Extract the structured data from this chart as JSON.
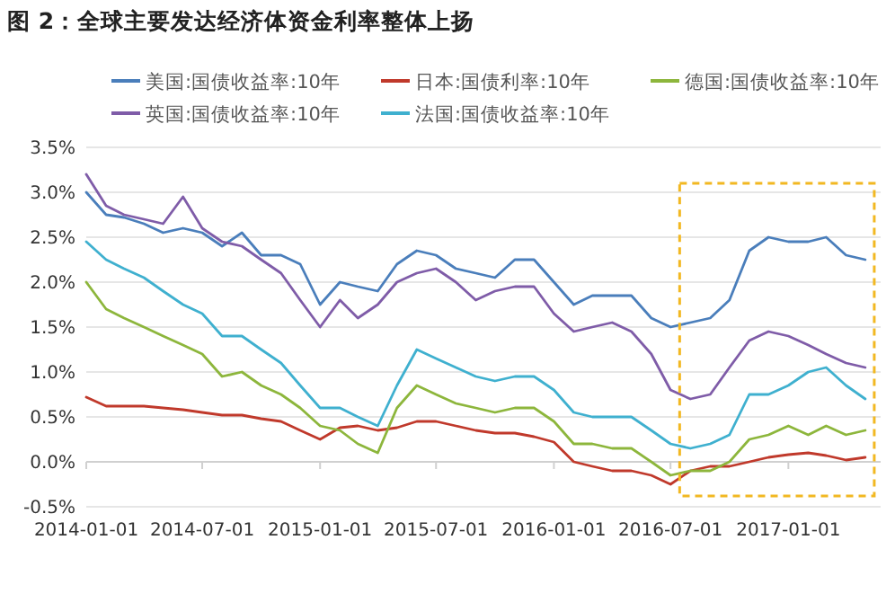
{
  "chart_data": {
    "type": "line",
    "title": "图 2：全球主要发达经济体资金利率整体上扬",
    "x": [
      "2014-01",
      "2014-02",
      "2014-03",
      "2014-04",
      "2014-05",
      "2014-06",
      "2014-07",
      "2014-08",
      "2014-09",
      "2014-10",
      "2014-11",
      "2014-12",
      "2015-01",
      "2015-02",
      "2015-03",
      "2015-04",
      "2015-05",
      "2015-06",
      "2015-07",
      "2015-08",
      "2015-09",
      "2015-10",
      "2015-11",
      "2015-12",
      "2016-01",
      "2016-02",
      "2016-03",
      "2016-04",
      "2016-05",
      "2016-06",
      "2016-07",
      "2016-08",
      "2016-09",
      "2016-10",
      "2016-11",
      "2016-12",
      "2017-01",
      "2017-02",
      "2017-03",
      "2017-04",
      "2017-05"
    ],
    "series": [
      {
        "name": "美国:国债收益率:10年",
        "color": "#4a7ebb",
        "values": [
          3.0,
          2.75,
          2.72,
          2.65,
          2.55,
          2.6,
          2.55,
          2.4,
          2.55,
          2.3,
          2.3,
          2.2,
          1.75,
          2.0,
          1.95,
          1.9,
          2.2,
          2.35,
          2.3,
          2.15,
          2.1,
          2.05,
          2.25,
          2.25,
          2.0,
          1.75,
          1.85,
          1.85,
          1.85,
          1.6,
          1.5,
          1.55,
          1.6,
          1.8,
          2.35,
          2.5,
          2.45,
          2.45,
          2.5,
          2.3,
          2.25
        ]
      },
      {
        "name": "日本:国债利率:10年",
        "color": "#c0392b",
        "values": [
          0.72,
          0.62,
          0.62,
          0.62,
          0.6,
          0.58,
          0.55,
          0.52,
          0.52,
          0.48,
          0.45,
          0.35,
          0.25,
          0.38,
          0.4,
          0.35,
          0.38,
          0.45,
          0.45,
          0.4,
          0.35,
          0.32,
          0.32,
          0.28,
          0.22,
          0.0,
          -0.05,
          -0.1,
          -0.1,
          -0.15,
          -0.25,
          -0.1,
          -0.05,
          -0.05,
          0.0,
          0.05,
          0.08,
          0.1,
          0.07,
          0.02,
          0.05
        ]
      },
      {
        "name": "德国:国债收益率:10年",
        "color": "#8db63c",
        "values": [
          2.0,
          1.7,
          1.6,
          1.5,
          1.4,
          1.3,
          1.2,
          0.95,
          1.0,
          0.85,
          0.75,
          0.6,
          0.4,
          0.35,
          0.2,
          0.1,
          0.6,
          0.85,
          0.75,
          0.65,
          0.6,
          0.55,
          0.6,
          0.6,
          0.45,
          0.2,
          0.2,
          0.15,
          0.15,
          0.0,
          -0.15,
          -0.1,
          -0.1,
          0.0,
          0.25,
          0.3,
          0.4,
          0.3,
          0.4,
          0.3,
          0.35
        ]
      },
      {
        "name": "英国:国债收益率:10年",
        "color": "#7f5ca8",
        "values": [
          3.2,
          2.85,
          2.75,
          2.7,
          2.65,
          2.95,
          2.6,
          2.45,
          2.4,
          2.25,
          2.1,
          1.8,
          1.5,
          1.8,
          1.6,
          1.75,
          2.0,
          2.1,
          2.15,
          2.0,
          1.8,
          1.9,
          1.95,
          1.95,
          1.65,
          1.45,
          1.5,
          1.55,
          1.45,
          1.2,
          0.8,
          0.7,
          0.75,
          1.05,
          1.35,
          1.45,
          1.4,
          1.3,
          1.2,
          1.1,
          1.05
        ]
      },
      {
        "name": "法国:国债收益率:10年",
        "color": "#3fb0cf",
        "values": [
          2.45,
          2.25,
          2.15,
          2.05,
          1.9,
          1.75,
          1.65,
          1.4,
          1.4,
          1.25,
          1.1,
          0.85,
          0.6,
          0.6,
          0.5,
          0.4,
          0.85,
          1.25,
          1.15,
          1.05,
          0.95,
          0.9,
          0.95,
          0.95,
          0.8,
          0.55,
          0.5,
          0.5,
          0.5,
          0.35,
          0.2,
          0.15,
          0.2,
          0.3,
          0.75,
          0.75,
          0.85,
          1.0,
          1.05,
          0.85,
          0.7
        ]
      }
    ],
    "xlim": [
      "2014-01-01",
      "2017-05-25"
    ],
    "xticks": [
      {
        "value": "2014-01-01",
        "label": "2014-01-01"
      },
      {
        "value": "2014-07-01",
        "label": "2014-07-01"
      },
      {
        "value": "2015-01-01",
        "label": "2015-01-01"
      },
      {
        "value": "2015-07-01",
        "label": "2015-07-01"
      },
      {
        "value": "2016-01-01",
        "label": "2016-01-01"
      },
      {
        "value": "2016-07-01",
        "label": "2016-07-01"
      },
      {
        "value": "2017-01-01",
        "label": "2017-01-01"
      }
    ],
    "ylim": [
      -0.5,
      3.5
    ],
    "yticks": [
      {
        "value": -0.5,
        "label": "-0.5%"
      },
      {
        "value": 0,
        "label": "0.0%"
      },
      {
        "value": 0.5,
        "label": "0.5%"
      },
      {
        "value": 1,
        "label": "1.0%"
      },
      {
        "value": 1.5,
        "label": "1.5%"
      },
      {
        "value": 2,
        "label": "2.0%"
      },
      {
        "value": 2.5,
        "label": "2.5%"
      },
      {
        "value": 3,
        "label": "3.0%"
      },
      {
        "value": 3.5,
        "label": "3.5%"
      }
    ],
    "grid": "y",
    "legend": "top",
    "marker": "none",
    "line_style": "solid"
  }
}
